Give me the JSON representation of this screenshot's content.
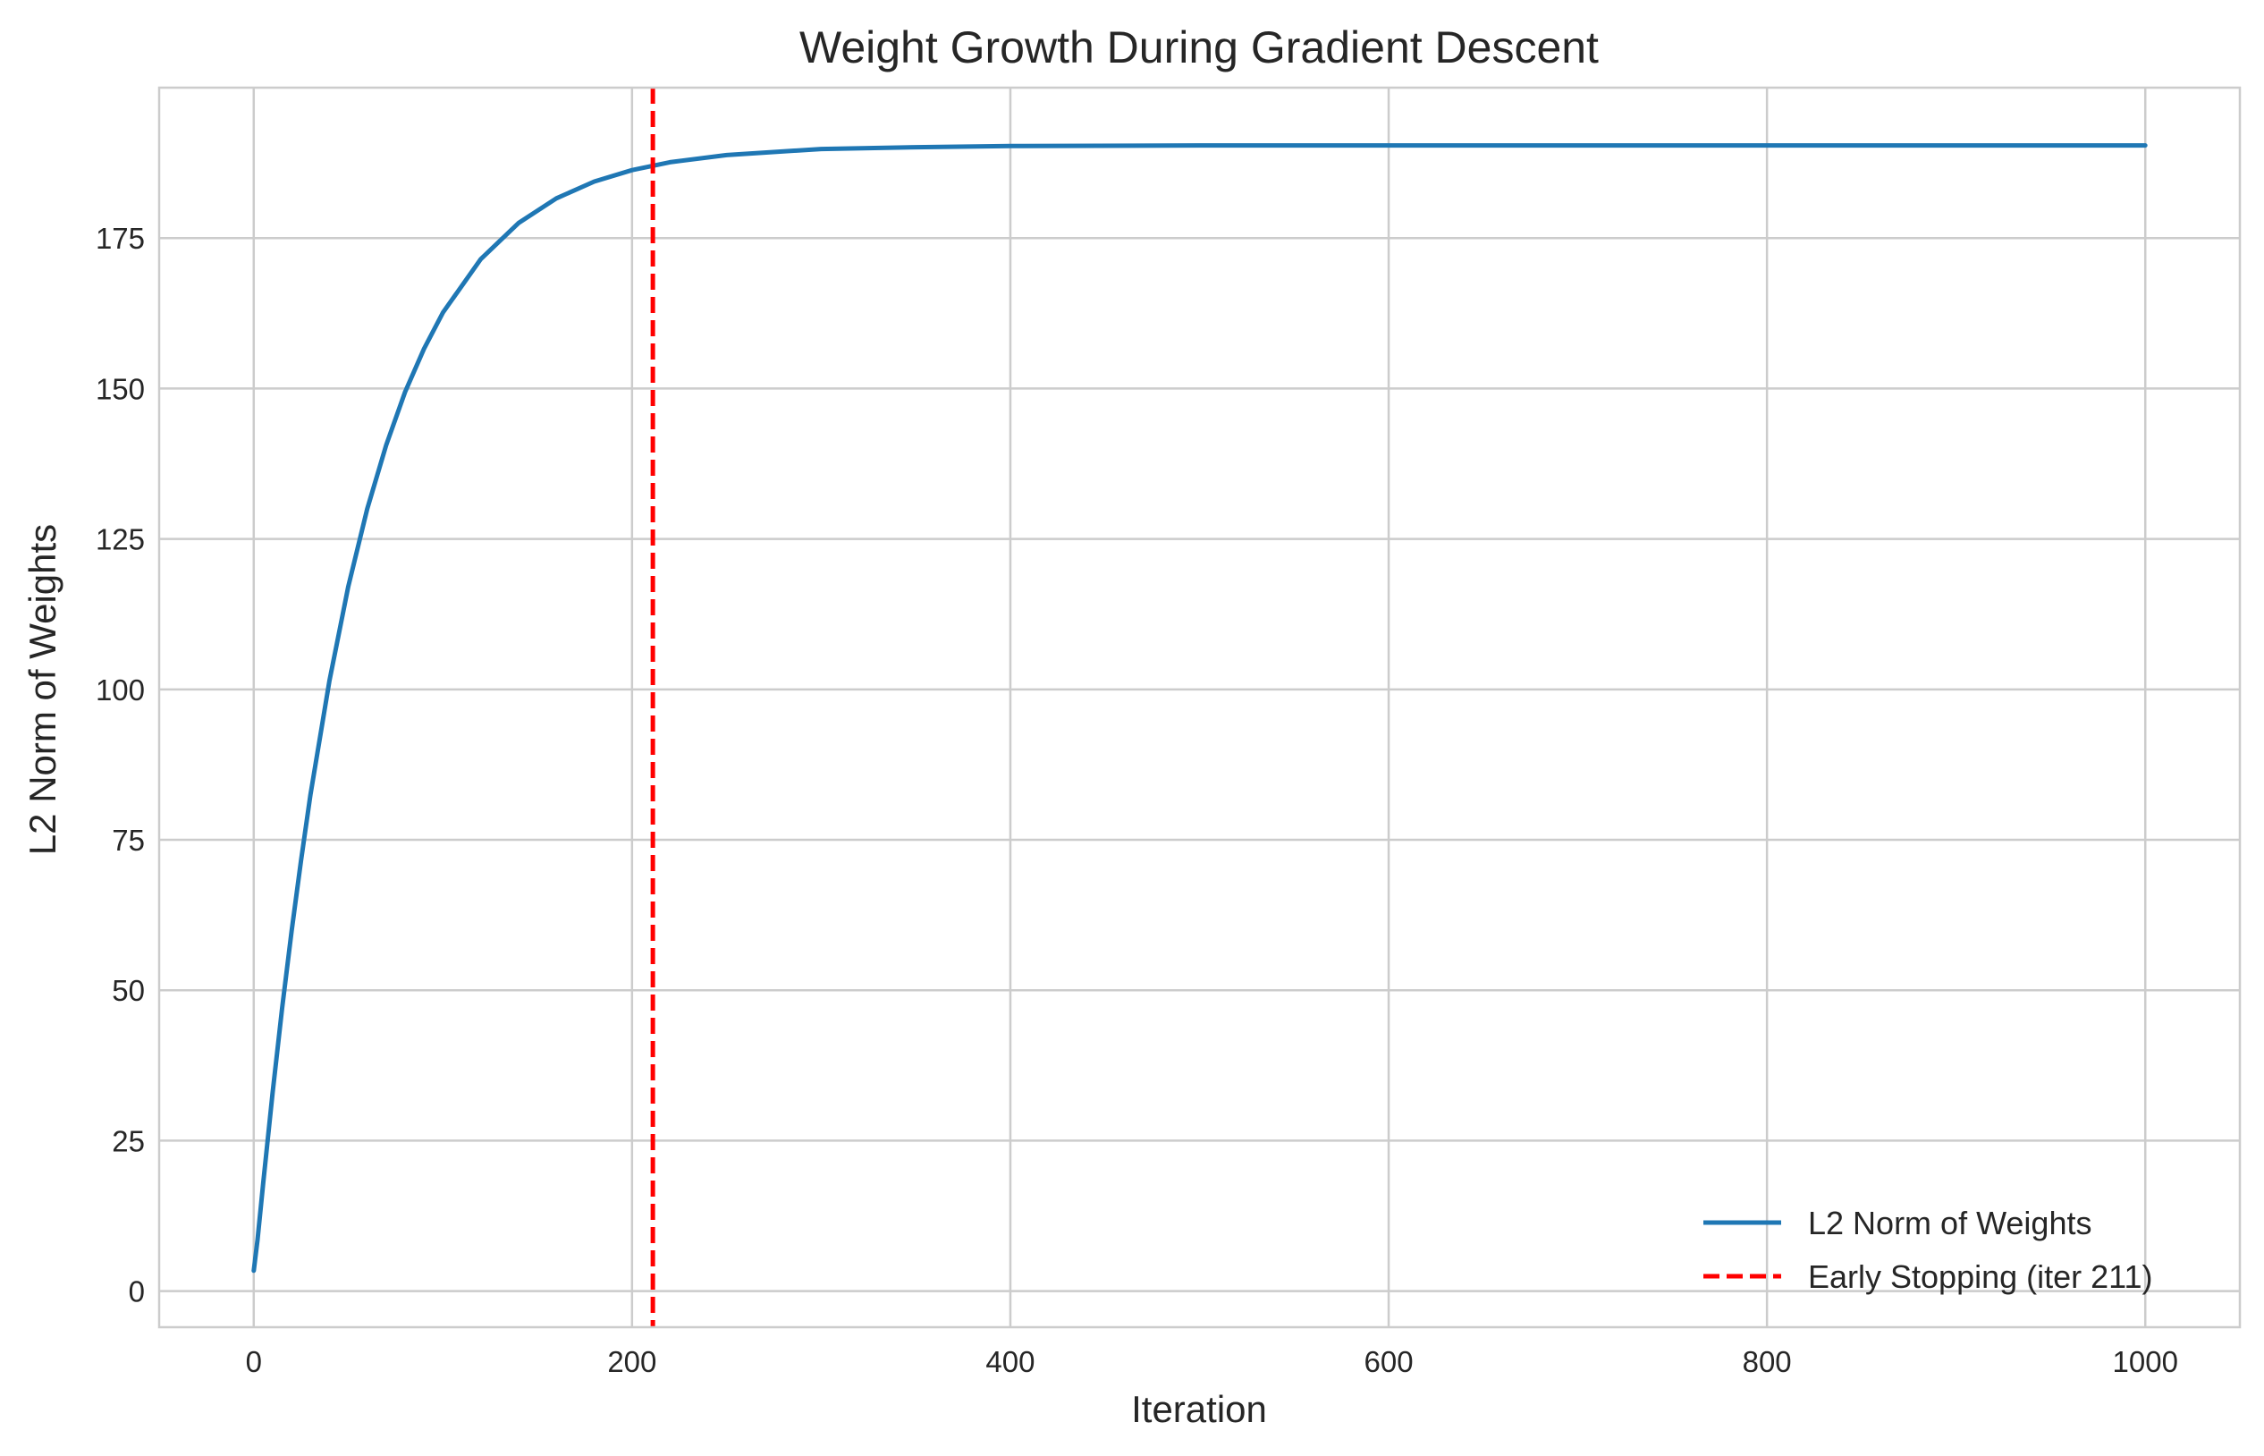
{
  "chart_data": {
    "type": "line",
    "title": "Weight Growth During Gradient Descent",
    "xlabel": "Iteration",
    "ylabel": "L2 Norm of Weights",
    "xlim": [
      -50,
      1050
    ],
    "ylim": [
      -6,
      200
    ],
    "xticks": [
      0,
      200,
      400,
      600,
      800,
      1000
    ],
    "yticks": [
      0,
      25,
      50,
      75,
      100,
      125,
      150,
      175
    ],
    "grid": true,
    "legend_position": "lower-right",
    "series": [
      {
        "name": "L2 Norm of Weights",
        "color": "#1f77b4",
        "x": [
          0,
          2,
          5,
          10,
          15,
          20,
          25,
          30,
          40,
          50,
          60,
          70,
          80,
          90,
          100,
          120,
          140,
          160,
          180,
          200,
          220,
          250,
          300,
          350,
          400,
          500,
          600,
          700,
          800,
          900,
          1000
        ],
        "y": [
          3.4,
          8.5,
          18.0,
          33.0,
          47.0,
          59.8,
          71.6,
          82.5,
          101.4,
          117.1,
          130.0,
          140.6,
          149.4,
          156.6,
          162.6,
          171.5,
          177.5,
          181.6,
          184.4,
          186.3,
          187.6,
          188.8,
          189.8,
          190.1,
          190.3,
          190.4,
          190.4,
          190.4,
          190.4,
          190.4,
          190.4
        ]
      }
    ],
    "vlines": [
      {
        "name": "Early Stopping (iter 211)",
        "x": 211,
        "color": "#ff0000",
        "style": "dashed"
      }
    ]
  }
}
